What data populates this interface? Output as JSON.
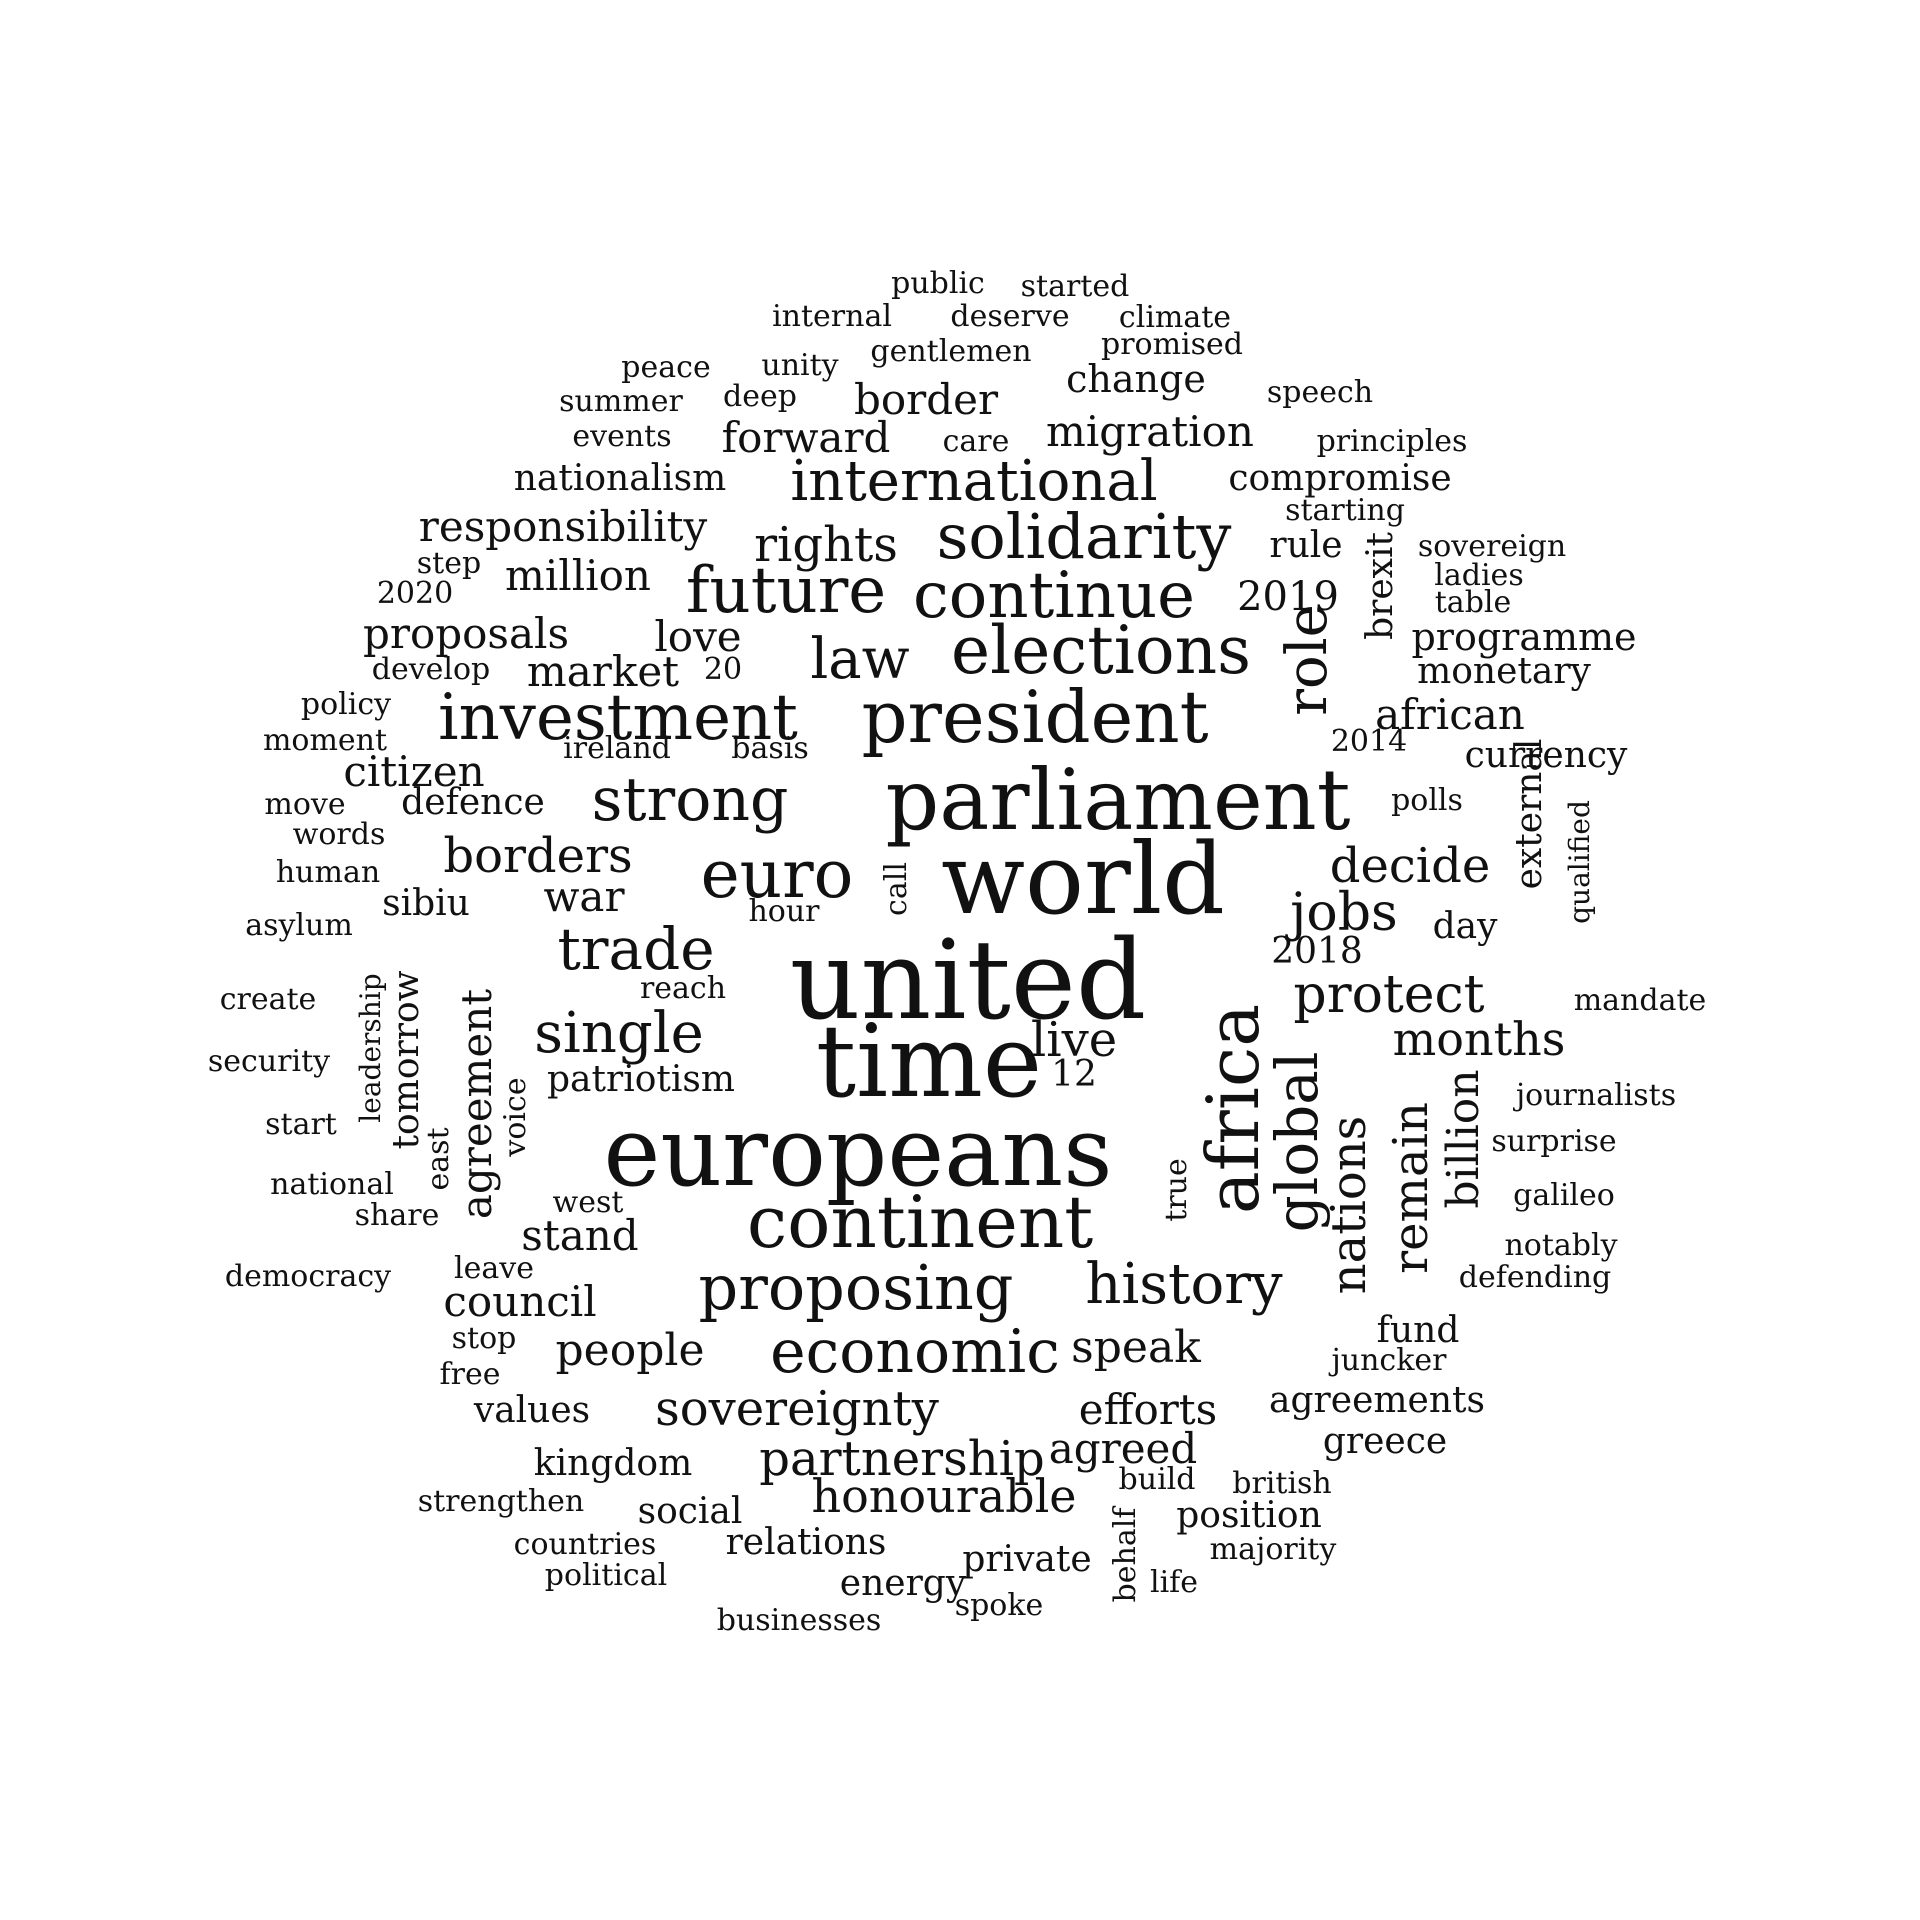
{
  "words": [
    "public",
    "started",
    "internal",
    "deserve",
    "climate",
    "gentlemen",
    "promised",
    "peace",
    "unity",
    "change",
    "summer",
    "deep",
    "border",
    "speech",
    "events",
    "forward",
    "care",
    "migration",
    "principles",
    "nationalism",
    "international",
    "compromise",
    "starting",
    "responsibility",
    "solidarity",
    "rights",
    "rule",
    "sovereign",
    "step",
    "million",
    "brexit",
    "ladies",
    "2020",
    "future",
    "continue",
    "2019",
    "table",
    "proposals",
    "love",
    "elections",
    "programme",
    "develop",
    "market",
    "20",
    "law",
    "role",
    "monetary",
    "policy",
    "investment",
    "president",
    "african",
    "moment",
    "ireland",
    "basis",
    "2014",
    "currency",
    "citizen",
    "parliament",
    "move",
    "defence",
    "strong",
    "polls",
    "words",
    "external",
    "qualified",
    "borders",
    "decide",
    "human",
    "euro",
    "world",
    "call",
    "jobs",
    "war",
    "sibiu",
    "hour",
    "day",
    "asylum",
    "trade",
    "united",
    "2018",
    "reach",
    "leadership",
    "protect",
    "create",
    "mandate",
    "tomorrow",
    "agreement",
    "single",
    "live",
    "months",
    "africa",
    "security",
    "patriotism",
    "12",
    "time",
    "journalists",
    "global",
    "start",
    "voice",
    "billion",
    "east",
    "europeans",
    "true",
    "nations",
    "surprise",
    "remain",
    "national",
    "west",
    "galileo",
    "share",
    "stand",
    "continent",
    "notably",
    "leave",
    "democracy",
    "defending",
    "council",
    "proposing",
    "history",
    "fund",
    "stop",
    "people",
    "economic",
    "speak",
    "free",
    "juncker",
    "values",
    "sovereignty",
    "efforts",
    "agreements",
    "greece",
    "kingdom",
    "partnership",
    "agreed",
    "build",
    "british",
    "strengthen",
    "social",
    "honourable",
    "position",
    "behalf",
    "countries",
    "relations",
    "majority",
    "private",
    "political",
    "energy",
    "life",
    "spoke",
    "businesses"
  ]
}
